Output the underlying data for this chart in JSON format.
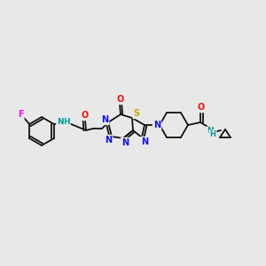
{
  "bg": "#e8e8e8",
  "bc": "#111111",
  "bw": 1.3,
  "dg": 2.5,
  "fs": 6.5,
  "colors": {
    "N": "#1010ee",
    "O": "#ee1010",
    "S": "#ccaa00",
    "F": "#ee10ee",
    "NH": "#009999",
    "C": "#111111"
  }
}
